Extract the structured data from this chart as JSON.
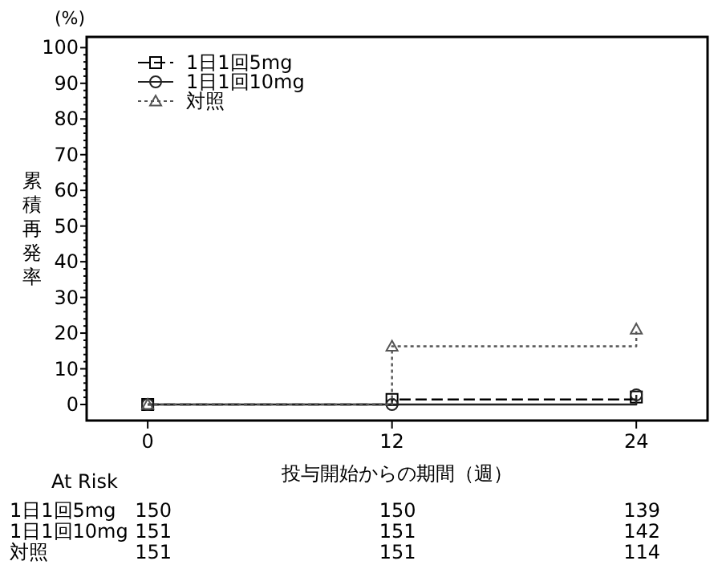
{
  "chart_data": {
    "type": "step",
    "xlabel": "投与開始からの期間（週）",
    "ylabel": "累積再発率",
    "x": [
      0,
      12,
      24
    ],
    "xlim": [
      -3,
      27.5
    ],
    "xticks": [
      0,
      12,
      24
    ],
    "ylim": [
      -4.5,
      103
    ],
    "yticks": [
      0,
      10,
      20,
      30,
      40,
      50,
      60,
      70,
      80,
      90,
      100
    ],
    "legend": "top left",
    "series": [
      {
        "name": "1日1回5mg",
        "color": "#000000",
        "values": [
          0,
          1.4,
          2.1
        ],
        "marker": "square",
        "line_style": "dashed"
      },
      {
        "name": "1日1回10mg",
        "color": "#222222",
        "values": [
          0,
          0,
          2.7
        ],
        "marker": "circle",
        "line_style": "solid"
      },
      {
        "name": "対照",
        "color": "#555555",
        "values": [
          0,
          16.3,
          21.1
        ],
        "marker": "triangle",
        "line_style": "dotted"
      }
    ],
    "annotations": [
      "(%)",
      "At Risk",
      "150",
      "150",
      "139",
      "151",
      "151",
      "142",
      "151",
      "151",
      "114"
    ]
  }
}
